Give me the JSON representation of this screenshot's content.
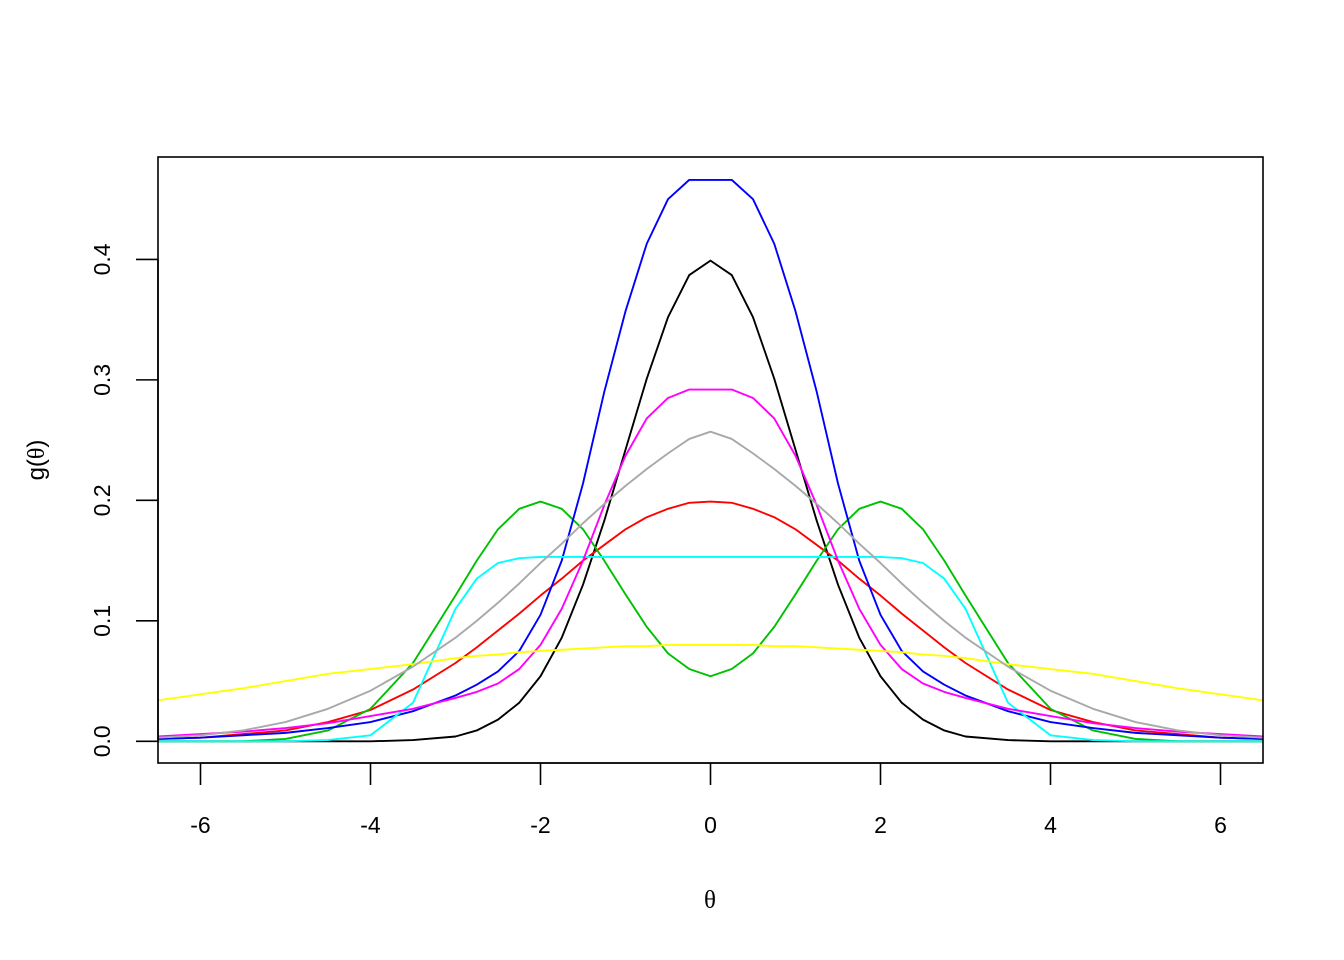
{
  "chart_data": {
    "type": "line",
    "title": "",
    "xlabel": "θ",
    "ylabel_prefix": "g(",
    "ylabel_symbol": "θ",
    "ylabel_suffix": ")",
    "xlim": [
      -6.5,
      6.5
    ],
    "ylim": [
      -0.018,
      0.485
    ],
    "x_ticks": [
      -6,
      -4,
      -2,
      0,
      2,
      4,
      6
    ],
    "x_tick_labels": [
      "-6",
      "-4",
      "-2",
      "0",
      "2",
      "4",
      "6"
    ],
    "y_ticks": [
      0.0,
      0.1,
      0.2,
      0.3,
      0.4
    ],
    "y_tick_labels": [
      "0.0",
      "0.1",
      "0.2",
      "0.3",
      "0.4"
    ],
    "grid": false,
    "legend": "none",
    "x": [
      -6.5,
      -6,
      -5.5,
      -5,
      -4.5,
      -4,
      -3.5,
      -3,
      -2.75,
      -2.5,
      -2.25,
      -2,
      -1.75,
      -1.5,
      -1.25,
      -1,
      -0.75,
      -0.5,
      -0.25,
      0,
      0.25,
      0.5,
      0.75,
      1,
      1.25,
      1.5,
      1.75,
      2,
      2.25,
      2.5,
      2.75,
      3,
      3.5,
      4,
      4.5,
      5,
      5.5,
      6,
      6.5
    ],
    "series": [
      {
        "color": "#000000",
        "values": [
          0.0,
          0.0,
          0.0,
          0.0,
          0.0,
          0.0,
          0.001,
          0.004,
          0.009,
          0.018,
          0.032,
          0.054,
          0.086,
          0.13,
          0.183,
          0.242,
          0.301,
          0.352,
          0.387,
          0.399,
          0.387,
          0.352,
          0.301,
          0.242,
          0.183,
          0.13,
          0.086,
          0.054,
          0.032,
          0.018,
          0.009,
          0.004,
          0.001,
          0.0,
          0.0,
          0.0,
          0.0,
          0.0,
          0.0
        ]
      },
      {
        "color": "#ff0000",
        "values": [
          0.002,
          0.003,
          0.006,
          0.009,
          0.016,
          0.026,
          0.043,
          0.065,
          0.078,
          0.092,
          0.106,
          0.121,
          0.135,
          0.15,
          0.163,
          0.176,
          0.186,
          0.193,
          0.198,
          0.199,
          0.198,
          0.193,
          0.186,
          0.176,
          0.163,
          0.15,
          0.135,
          0.121,
          0.106,
          0.092,
          0.078,
          0.065,
          0.043,
          0.026,
          0.016,
          0.009,
          0.006,
          0.003,
          0.002
        ]
      },
      {
        "color": "#00c000",
        "values": [
          0.0,
          0.0,
          0.0,
          0.002,
          0.009,
          0.027,
          0.065,
          0.121,
          0.15,
          0.176,
          0.193,
          0.199,
          0.193,
          0.176,
          0.15,
          0.122,
          0.095,
          0.073,
          0.06,
          0.054,
          0.06,
          0.073,
          0.095,
          0.122,
          0.15,
          0.176,
          0.193,
          0.199,
          0.193,
          0.176,
          0.15,
          0.121,
          0.065,
          0.027,
          0.009,
          0.002,
          0.0,
          0.0,
          0.0
        ]
      },
      {
        "color": "#0000ff",
        "values": [
          0.002,
          0.003,
          0.005,
          0.007,
          0.011,
          0.016,
          0.025,
          0.038,
          0.047,
          0.058,
          0.075,
          0.105,
          0.15,
          0.214,
          0.29,
          0.357,
          0.413,
          0.45,
          0.466,
          0.466,
          0.466,
          0.45,
          0.413,
          0.357,
          0.29,
          0.214,
          0.15,
          0.105,
          0.075,
          0.058,
          0.047,
          0.038,
          0.025,
          0.016,
          0.011,
          0.007,
          0.005,
          0.003,
          0.002
        ]
      },
      {
        "color": "#00ffff",
        "values": [
          0.0,
          0.0,
          0.0,
          0.0,
          0.001,
          0.005,
          0.032,
          0.11,
          0.135,
          0.148,
          0.152,
          0.153,
          0.153,
          0.153,
          0.153,
          0.153,
          0.153,
          0.153,
          0.153,
          0.153,
          0.153,
          0.153,
          0.153,
          0.153,
          0.153,
          0.153,
          0.153,
          0.153,
          0.152,
          0.148,
          0.135,
          0.11,
          0.032,
          0.005,
          0.001,
          0.0,
          0.0,
          0.0,
          0.0
        ]
      },
      {
        "color": "#ff00ff",
        "values": [
          0.004,
          0.006,
          0.008,
          0.011,
          0.015,
          0.021,
          0.027,
          0.036,
          0.041,
          0.048,
          0.06,
          0.08,
          0.11,
          0.15,
          0.196,
          0.237,
          0.268,
          0.285,
          0.292,
          0.292,
          0.292,
          0.285,
          0.268,
          0.237,
          0.196,
          0.15,
          0.11,
          0.08,
          0.06,
          0.048,
          0.041,
          0.036,
          0.027,
          0.021,
          0.015,
          0.011,
          0.008,
          0.006,
          0.004
        ]
      },
      {
        "color": "#ffff00",
        "values": [
          0.034,
          0.039,
          0.044,
          0.05,
          0.056,
          0.06,
          0.064,
          0.069,
          0.071,
          0.072,
          0.074,
          0.075,
          0.076,
          0.077,
          0.078,
          0.079,
          0.079,
          0.08,
          0.08,
          0.08,
          0.08,
          0.08,
          0.079,
          0.079,
          0.078,
          0.077,
          0.076,
          0.075,
          0.074,
          0.072,
          0.071,
          0.069,
          0.064,
          0.06,
          0.056,
          0.05,
          0.044,
          0.039,
          0.034
        ]
      },
      {
        "color": "#a9a9a9",
        "values": [
          0.003,
          0.005,
          0.009,
          0.016,
          0.027,
          0.042,
          0.062,
          0.086,
          0.1,
          0.115,
          0.131,
          0.148,
          0.164,
          0.181,
          0.197,
          0.212,
          0.226,
          0.239,
          0.251,
          0.257,
          0.251,
          0.239,
          0.226,
          0.212,
          0.197,
          0.181,
          0.164,
          0.148,
          0.131,
          0.115,
          0.1,
          0.086,
          0.062,
          0.042,
          0.027,
          0.016,
          0.009,
          0.005,
          0.003
        ]
      }
    ]
  }
}
